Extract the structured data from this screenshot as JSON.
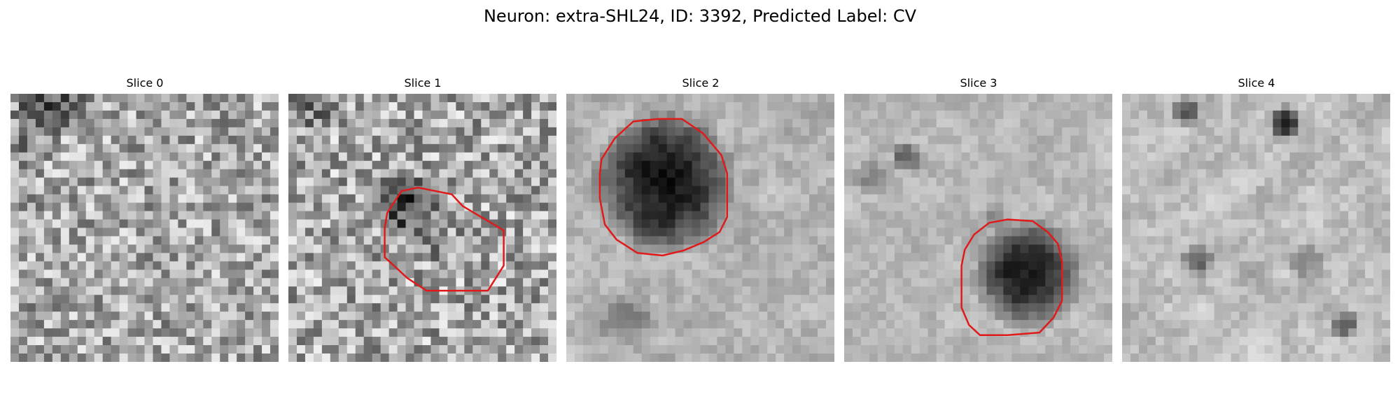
{
  "figure": {
    "title": "Neuron: extra-SHL24, ID: 3392, Predicted Label: CV",
    "contour_color": "#e01a1a"
  },
  "panels": [
    {
      "title": "Slice 0"
    },
    {
      "title": "Slice 1"
    },
    {
      "title": "Slice 2"
    },
    {
      "title": "Slice 3"
    },
    {
      "title": "Slice 4"
    }
  ]
}
